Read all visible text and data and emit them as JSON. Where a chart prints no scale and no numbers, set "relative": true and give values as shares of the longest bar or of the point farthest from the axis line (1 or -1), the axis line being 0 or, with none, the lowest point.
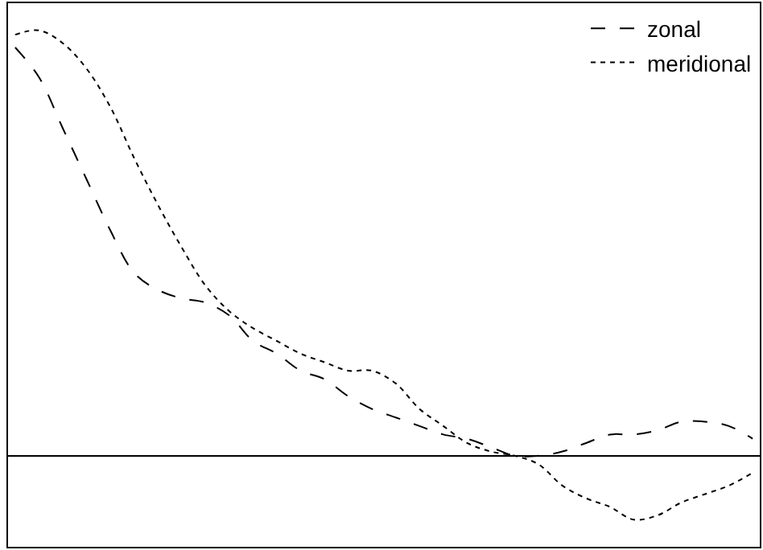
{
  "chart_data": {
    "type": "line",
    "relative": true,
    "legend": "top right",
    "marker": "none",
    "categories": [
      null,
      null,
      null,
      null,
      null,
      null,
      null,
      null,
      null,
      null,
      null,
      null,
      null,
      null,
      null,
      null,
      null,
      null,
      null,
      null,
      null,
      null,
      null,
      null,
      null,
      null,
      null,
      null,
      null,
      null,
      null,
      null
    ],
    "series": [
      {
        "name": "zonal",
        "color": "#000000",
        "line_style": "dashed",
        "values": [
          0.96,
          0.89,
          0.77,
          0.65,
          0.53,
          0.43,
          0.39,
          0.37,
          0.36,
          0.33,
          0.27,
          0.24,
          0.2,
          0.18,
          0.14,
          0.11,
          0.09,
          0.07,
          0.05,
          0.04,
          0.02,
          0.0,
          0.0,
          0.01,
          0.03,
          0.05,
          0.05,
          0.06,
          0.08,
          0.08,
          0.07,
          0.04
        ]
      },
      {
        "name": "meridional",
        "color": "#000000",
        "line_style": "dotted",
        "values": [
          0.99,
          1.0,
          0.97,
          0.91,
          0.82,
          0.7,
          0.59,
          0.49,
          0.4,
          0.34,
          0.3,
          0.27,
          0.24,
          0.22,
          0.2,
          0.2,
          0.17,
          0.11,
          0.07,
          0.03,
          0.01,
          0.0,
          -0.02,
          -0.07,
          -0.1,
          -0.12,
          -0.15,
          -0.14,
          -0.11,
          -0.09,
          -0.07,
          -0.04
        ]
      }
    ]
  }
}
